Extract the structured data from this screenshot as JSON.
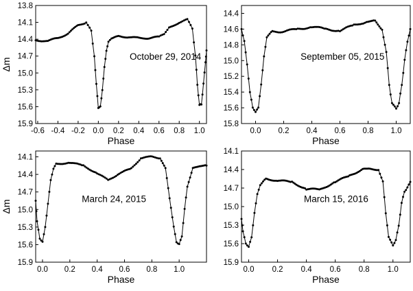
{
  "chart_data": [
    {
      "type": "scatter",
      "annotation": "October 29, 2014",
      "xlabel": "Phase",
      "ylabel": "Δm",
      "xlim": [
        -0.62,
        1.07
      ],
      "ylim": [
        15.9,
        13.8
      ],
      "y_inverted": true,
      "xticks": [
        -0.6,
        -0.4,
        -0.2,
        0.0,
        0.2,
        0.4,
        0.6,
        0.8,
        1.0
      ],
      "xtick_labels": [
        "-0.6",
        "-0.4",
        "-0.2",
        "0.0",
        "0.2",
        "0.4",
        "0.6",
        "0.8",
        "1.0"
      ],
      "yticks": [
        13.8,
        14.1,
        14.4,
        14.7,
        15.0,
        15.3,
        15.6,
        15.9
      ],
      "ytick_labels": [
        "13.8",
        "14.1",
        "14.4",
        "14.7",
        "15.0",
        "15.3",
        "15.6",
        "15.9"
      ],
      "series": [
        {
          "x": [
            -0.62,
            -0.5,
            -0.4,
            -0.3,
            -0.2,
            -0.12,
            -0.07,
            -0.04,
            -0.02,
            0.0,
            0.02,
            0.04,
            0.06,
            0.08,
            0.1,
            0.13,
            0.2,
            0.3,
            0.4,
            0.5,
            0.6,
            0.65,
            0.7,
            0.8,
            0.88,
            0.93,
            0.96,
            0.98,
            1.0,
            1.02,
            1.04,
            1.06,
            1.07
          ],
          "y": [
            14.42,
            14.43,
            14.38,
            14.3,
            14.15,
            14.1,
            14.25,
            14.7,
            15.2,
            15.62,
            15.6,
            15.3,
            14.9,
            14.6,
            14.45,
            14.38,
            14.35,
            14.36,
            14.38,
            14.38,
            14.36,
            14.3,
            14.2,
            14.1,
            14.05,
            14.2,
            14.7,
            15.2,
            15.58,
            15.55,
            15.2,
            14.8,
            14.6
          ]
        }
      ]
    },
    {
      "type": "scatter",
      "annotation": "September 05, 2015",
      "xlabel": "Phase",
      "ylabel": "",
      "xlim": [
        -0.1,
        1.1
      ],
      "ylim": [
        15.8,
        14.3
      ],
      "y_inverted": true,
      "xticks": [
        0.0,
        0.2,
        0.4,
        0.6,
        0.8,
        1.0
      ],
      "xtick_labels": [
        "0.0",
        "0.2",
        "0.4",
        "0.6",
        "0.8",
        "1.0"
      ],
      "yticks": [
        14.4,
        14.6,
        14.8,
        15.0,
        15.2,
        15.4,
        15.6,
        15.8
      ],
      "ytick_labels": [
        "14.4",
        "14.6",
        "14.8",
        "15.0",
        "15.2",
        "15.4",
        "15.6",
        "15.8"
      ],
      "series": [
        {
          "x": [
            -0.1,
            -0.08,
            -0.06,
            -0.04,
            -0.02,
            0.0,
            0.02,
            0.04,
            0.06,
            0.08,
            0.12,
            0.2,
            0.3,
            0.4,
            0.5,
            0.6,
            0.7,
            0.8,
            0.85,
            0.9,
            0.93,
            0.95,
            0.97,
            1.0,
            1.02,
            1.04,
            1.06,
            1.08,
            1.1
          ],
          "y": [
            14.6,
            14.75,
            15.05,
            15.4,
            15.6,
            15.65,
            15.6,
            15.3,
            14.95,
            14.7,
            14.63,
            14.63,
            14.6,
            14.57,
            14.6,
            14.62,
            14.55,
            14.5,
            14.5,
            14.6,
            14.9,
            15.3,
            15.55,
            15.6,
            15.55,
            15.3,
            15.0,
            14.75,
            14.6
          ]
        }
      ]
    },
    {
      "type": "scatter",
      "annotation": "March 24, 2015",
      "xlabel": "Phase",
      "ylabel": "Δm",
      "xlim": [
        -0.05,
        1.2
      ],
      "ylim": [
        15.9,
        14.0
      ],
      "y_inverted": true,
      "xticks": [
        0.0,
        0.2,
        0.4,
        0.6,
        0.8,
        1.0
      ],
      "xtick_labels": [
        "0.0",
        "0.2",
        "0.4",
        "0.6",
        "0.8",
        "1.0"
      ],
      "yticks": [
        14.1,
        14.4,
        14.7,
        15.0,
        15.3,
        15.6,
        15.9
      ],
      "ytick_labels": [
        "14.1",
        "14.4",
        "14.7",
        "15.0",
        "15.3",
        "15.6",
        "15.9"
      ],
      "series": [
        {
          "x": [
            -0.05,
            -0.04,
            -0.02,
            0.0,
            0.02,
            0.04,
            0.06,
            0.08,
            0.1,
            0.2,
            0.3,
            0.4,
            0.48,
            0.55,
            0.65,
            0.72,
            0.8,
            0.86,
            0.9,
            0.93,
            0.96,
            0.98,
            1.0,
            1.02,
            1.04,
            1.06,
            1.1,
            1.15,
            1.2
          ],
          "y": [
            14.85,
            15.2,
            15.5,
            15.55,
            15.3,
            14.9,
            14.5,
            14.3,
            14.22,
            14.2,
            14.25,
            14.38,
            14.5,
            14.4,
            14.3,
            14.12,
            14.1,
            14.12,
            14.3,
            14.8,
            15.3,
            15.55,
            15.6,
            15.45,
            15.0,
            14.6,
            14.3,
            14.25,
            14.25
          ]
        }
      ]
    },
    {
      "type": "scatter",
      "annotation": "March 15, 2016",
      "xlabel": "Phase",
      "ylabel": "",
      "xlim": [
        -0.05,
        1.12
      ],
      "ylim": [
        15.9,
        14.1
      ],
      "y_inverted": true,
      "xticks": [
        0.0,
        0.2,
        0.4,
        0.6,
        0.8,
        1.0
      ],
      "xtick_labels": [
        "0.0",
        "0.2",
        "0.4",
        "0.6",
        "0.8",
        "1.0"
      ],
      "yticks": [
        14.1,
        14.4,
        14.7,
        15.0,
        15.3,
        15.6,
        15.9
      ],
      "ytick_labels": [
        "14.1",
        "14.4",
        "14.7",
        "15.0",
        "15.3",
        "15.6",
        "15.9"
      ],
      "series": [
        {
          "x": [
            -0.05,
            -0.04,
            -0.02,
            0.0,
            0.02,
            0.04,
            0.06,
            0.08,
            0.12,
            0.2,
            0.3,
            0.4,
            0.5,
            0.6,
            0.7,
            0.8,
            0.85,
            0.9,
            0.93,
            0.95,
            0.97,
            1.0,
            1.02,
            1.04,
            1.06,
            1.08,
            1.1,
            1.12
          ],
          "y": [
            15.2,
            15.4,
            15.6,
            15.65,
            15.5,
            15.1,
            14.8,
            14.65,
            14.55,
            14.58,
            14.6,
            14.72,
            14.72,
            14.6,
            14.5,
            14.38,
            14.4,
            14.4,
            14.6,
            15.1,
            15.5,
            15.62,
            15.55,
            15.3,
            14.95,
            14.75,
            14.7,
            14.6
          ]
        }
      ]
    }
  ]
}
